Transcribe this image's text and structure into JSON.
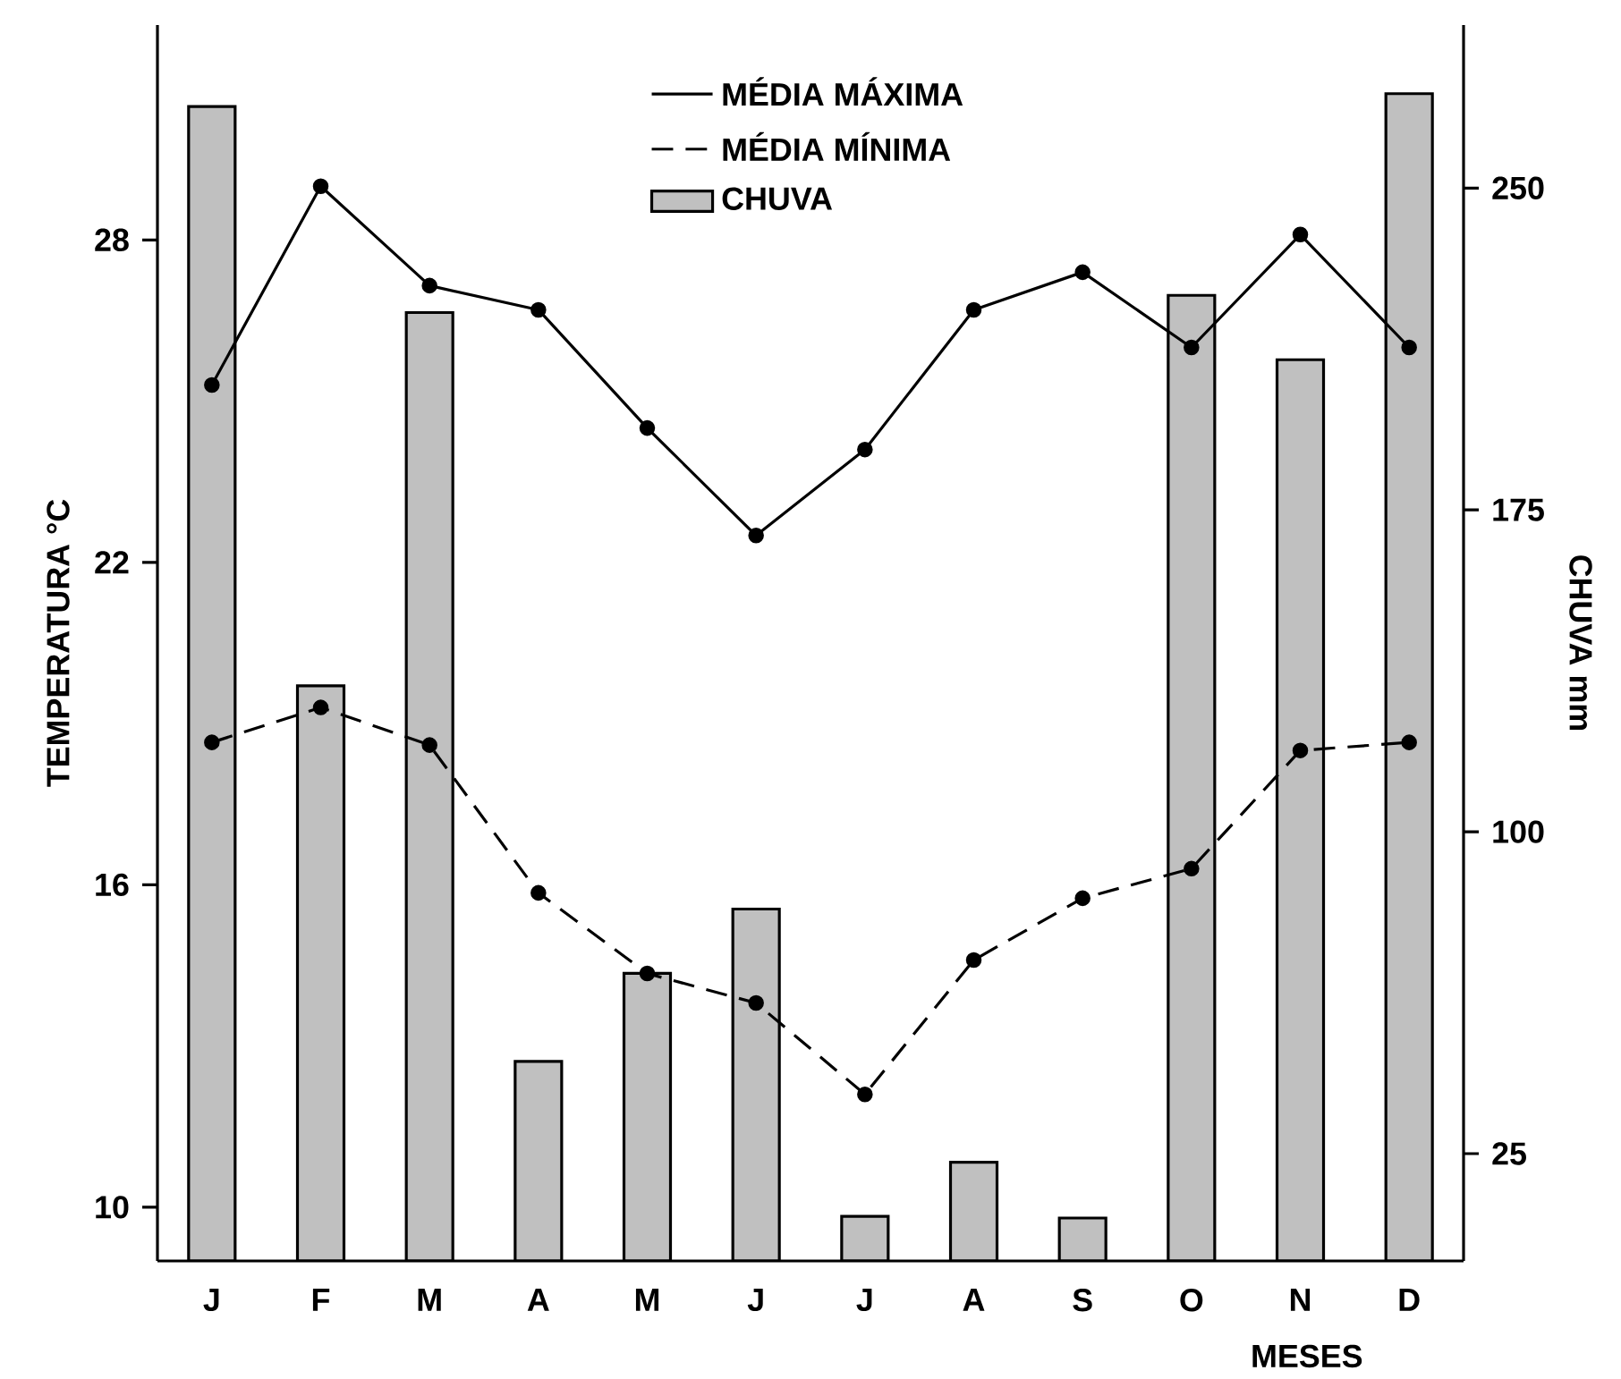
{
  "chart_data": {
    "type": "line",
    "xlabel": "MESES",
    "ylabel": "TEMPERATURA °C",
    "y2label": "CHUVA mm",
    "categories": [
      "J",
      "F",
      "M",
      "A",
      "M",
      "J",
      "J",
      "A",
      "S",
      "O",
      "N",
      "D"
    ],
    "ylim": [
      9,
      32
    ],
    "yticks": [
      10,
      16,
      22,
      28
    ],
    "y2lim": [
      0,
      288
    ],
    "y2ticks": [
      25,
      100,
      175,
      250
    ],
    "legend": "top",
    "grid": false,
    "marker": "circle",
    "series": [
      {
        "name": "CHUVA",
        "type": "bar",
        "axis": "y2",
        "color": "#c0c0c0",
        "values": [
          269,
          134,
          221,
          46.5,
          67,
          82,
          10.4,
          23,
          10,
          225,
          210,
          272
        ]
      },
      {
        "name": "MÉDIA MÁXIMA",
        "line_style": "solid",
        "color": "#000000",
        "values": [
          25.3,
          29.0,
          27.15,
          26.7,
          24.5,
          22.5,
          24.1,
          26.7,
          27.4,
          26.0,
          28.1,
          26.0
        ]
      },
      {
        "name": "MÉDIA MÍNIMA",
        "line_style": "dashed",
        "color": "#000000",
        "values": [
          18.65,
          19.3,
          18.6,
          15.85,
          14.35,
          13.8,
          12.1,
          14.6,
          15.75,
          16.3,
          18.5,
          18.65
        ]
      }
    ]
  }
}
